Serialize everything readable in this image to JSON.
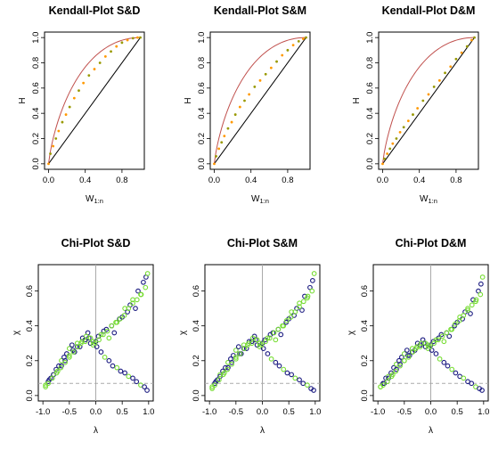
{
  "colors": {
    "orange_points": "#ff9900",
    "olive_points": "#999900",
    "navy_points": "#1a1a80",
    "green_points": "#77dd33",
    "red_curve": "#c0504d",
    "diagonal": "#000000",
    "grey_ref": "#aaaaaa"
  },
  "chart_data": [
    {
      "type": "scatter",
      "kind": "kendall",
      "title": "Kendall-Plot S&D",
      "xlabel": "W",
      "xlabel_sub": "1:n",
      "ylabel": "H",
      "xlim": [
        0,
        1
      ],
      "ylim": [
        0,
        1
      ],
      "xticks": [
        "0.0",
        "0.4",
        "0.8"
      ],
      "yticks": [
        "0.0",
        "0.2",
        "0.4",
        "0.6",
        "0.8",
        "1.0"
      ],
      "series": [
        {
          "x": [
            0,
            0.02,
            0.05,
            0.08,
            0.11,
            0.15,
            0.19,
            0.23,
            0.28,
            0.33,
            0.38,
            0.44,
            0.5,
            0.56,
            0.62,
            0.68,
            0.74,
            0.8,
            0.86,
            0.92,
            0.97,
            1.0
          ],
          "y": [
            0,
            0.08,
            0.14,
            0.2,
            0.26,
            0.33,
            0.39,
            0.45,
            0.52,
            0.58,
            0.64,
            0.7,
            0.75,
            0.8,
            0.85,
            0.89,
            0.93,
            0.96,
            0.98,
            0.995,
            1.0,
            1.0
          ]
        }
      ],
      "curves": [
        "upper-bound",
        "diagonal"
      ],
      "grid": false
    },
    {
      "type": "scatter",
      "kind": "kendall",
      "title": "Kendall-Plot S&M",
      "xlabel": "W",
      "xlabel_sub": "1:n",
      "ylabel": "H",
      "xlim": [
        0,
        1
      ],
      "ylim": [
        0,
        1
      ],
      "xticks": [
        "0.0",
        "0.4",
        "0.8"
      ],
      "yticks": [
        "0.0",
        "0.2",
        "0.4",
        "0.6",
        "0.8",
        "1.0"
      ],
      "series": [
        {
          "x": [
            0,
            0.02,
            0.05,
            0.08,
            0.11,
            0.15,
            0.19,
            0.23,
            0.28,
            0.33,
            0.38,
            0.44,
            0.5,
            0.56,
            0.62,
            0.68,
            0.74,
            0.8,
            0.86,
            0.92,
            0.97,
            1.0
          ],
          "y": [
            0,
            0.06,
            0.12,
            0.17,
            0.22,
            0.28,
            0.33,
            0.39,
            0.45,
            0.5,
            0.55,
            0.61,
            0.66,
            0.71,
            0.76,
            0.81,
            0.86,
            0.9,
            0.94,
            0.97,
            0.99,
            1.0
          ]
        }
      ],
      "curves": [
        "upper-bound",
        "diagonal"
      ],
      "grid": false
    },
    {
      "type": "scatter",
      "kind": "kendall",
      "title": "Kendall-Plot D&M",
      "xlabel": "W",
      "xlabel_sub": "1:n",
      "ylabel": "H",
      "xlim": [
        0,
        1
      ],
      "ylim": [
        0,
        1
      ],
      "xticks": [
        "0.0",
        "0.4",
        "0.8"
      ],
      "yticks": [
        "0.0",
        "0.2",
        "0.4",
        "0.6",
        "0.8",
        "1.0"
      ],
      "series": [
        {
          "x": [
            0,
            0.02,
            0.05,
            0.08,
            0.11,
            0.15,
            0.19,
            0.23,
            0.28,
            0.33,
            0.38,
            0.44,
            0.5,
            0.56,
            0.62,
            0.68,
            0.74,
            0.8,
            0.86,
            0.92,
            0.97,
            1.0
          ],
          "y": [
            0,
            0.04,
            0.08,
            0.12,
            0.16,
            0.2,
            0.25,
            0.29,
            0.34,
            0.39,
            0.44,
            0.5,
            0.55,
            0.61,
            0.66,
            0.72,
            0.77,
            0.83,
            0.88,
            0.93,
            0.98,
            1.0
          ]
        }
      ],
      "curves": [
        "upper-bound",
        "diagonal"
      ],
      "grid": false
    },
    {
      "type": "scatter",
      "kind": "chi",
      "title": "Chi-Plot S&D",
      "xlabel": "λ",
      "ylabel": "χ",
      "xlim": [
        -1,
        1
      ],
      "ylim": [
        0,
        0.72
      ],
      "xticks": [
        "-1.0",
        "-0.5",
        "0.0",
        "0.5",
        "1.0"
      ],
      "yticks": [
        "0.0",
        "0.2",
        "0.4",
        "0.6"
      ],
      "series": [
        {
          "x": [
            -0.95,
            -0.9,
            -0.85,
            -0.8,
            -0.75,
            -0.7,
            -0.65,
            -0.6,
            -0.55,
            -0.5,
            -0.45,
            -0.4,
            -0.35,
            -0.3,
            -0.25,
            -0.2,
            -0.15,
            -0.1,
            -0.05,
            0.0,
            0.05,
            0.1,
            0.15,
            0.2,
            0.25,
            0.3,
            0.35,
            0.4,
            0.45,
            0.5,
            0.55,
            0.6,
            0.65,
            0.7,
            0.75,
            0.8,
            0.85,
            0.9,
            0.95,
            0.98
          ],
          "y": [
            0.05,
            0.08,
            0.1,
            0.12,
            0.15,
            0.17,
            0.2,
            0.22,
            0.24,
            0.27,
            0.29,
            0.25,
            0.3,
            0.28,
            0.33,
            0.31,
            0.36,
            0.3,
            0.29,
            0.31,
            0.34,
            0.35,
            0.37,
            0.38,
            0.33,
            0.4,
            0.36,
            0.42,
            0.44,
            0.45,
            0.5,
            0.48,
            0.52,
            0.55,
            0.5,
            0.6,
            0.58,
            0.65,
            0.68,
            0.7
          ]
        },
        {
          "x": [
            -0.95,
            -0.88,
            -0.8,
            -0.72,
            -0.65,
            -0.58,
            -0.5,
            -0.43,
            -0.35,
            -0.28,
            -0.2,
            -0.13,
            -0.05,
            0.02,
            0.1,
            0.17,
            0.25,
            0.32,
            0.4,
            0.47,
            0.55,
            0.62,
            0.7,
            0.77,
            0.85,
            0.92,
            0.97
          ],
          "y": [
            0.06,
            0.09,
            0.12,
            0.14,
            0.17,
            0.2,
            0.23,
            0.26,
            0.28,
            0.3,
            0.32,
            0.33,
            0.31,
            0.28,
            0.25,
            0.22,
            0.2,
            0.17,
            0.16,
            0.14,
            0.13,
            0.11,
            0.1,
            0.08,
            0.06,
            0.05,
            0.03
          ]
        },
        {
          "x": [
            -0.9,
            -0.82,
            -0.74,
            -0.66,
            -0.58,
            -0.5,
            -0.42,
            -0.34,
            -0.26,
            -0.18,
            -0.1,
            -0.02,
            0.06,
            0.14,
            0.22,
            0.3,
            0.38,
            0.46,
            0.54,
            0.62,
            0.7,
            0.78,
            0.86,
            0.94
          ],
          "y": [
            0.07,
            0.1,
            0.13,
            0.16,
            0.19,
            0.22,
            0.25,
            0.28,
            0.31,
            0.34,
            0.33,
            0.3,
            0.32,
            0.35,
            0.37,
            0.4,
            0.42,
            0.44,
            0.46,
            0.5,
            0.53,
            0.55,
            0.58,
            0.62
          ]
        }
      ],
      "reference_lines": {
        "vertical_x": 0,
        "horizontal_y": 0.07
      },
      "grid": false
    },
    {
      "type": "scatter",
      "kind": "chi",
      "title": "Chi-Plot S&M",
      "xlabel": "λ",
      "ylabel": "χ",
      "xlim": [
        -1,
        1
      ],
      "ylim": [
        0,
        0.72
      ],
      "xticks": [
        "-1.0",
        "-0.5",
        "0.0",
        "0.5",
        "1.0"
      ],
      "yticks": [
        "0.0",
        "0.2",
        "0.4",
        "0.6"
      ],
      "series": [
        {
          "x": [
            -0.95,
            -0.9,
            -0.85,
            -0.8,
            -0.75,
            -0.7,
            -0.65,
            -0.6,
            -0.55,
            -0.5,
            -0.45,
            -0.4,
            -0.35,
            -0.3,
            -0.25,
            -0.2,
            -0.15,
            -0.1,
            -0.05,
            0.0,
            0.05,
            0.1,
            0.15,
            0.2,
            0.25,
            0.3,
            0.35,
            0.4,
            0.45,
            0.5,
            0.55,
            0.6,
            0.65,
            0.7,
            0.75,
            0.8,
            0.85,
            0.9,
            0.95,
            0.98
          ],
          "y": [
            0.04,
            0.07,
            0.09,
            0.12,
            0.14,
            0.16,
            0.19,
            0.21,
            0.23,
            0.26,
            0.28,
            0.24,
            0.29,
            0.27,
            0.31,
            0.3,
            0.34,
            0.29,
            0.28,
            0.3,
            0.32,
            0.33,
            0.35,
            0.36,
            0.32,
            0.38,
            0.35,
            0.4,
            0.42,
            0.44,
            0.48,
            0.46,
            0.5,
            0.53,
            0.49,
            0.57,
            0.56,
            0.62,
            0.66,
            0.7
          ]
        },
        {
          "x": [
            -0.95,
            -0.88,
            -0.8,
            -0.72,
            -0.65,
            -0.58,
            -0.5,
            -0.43,
            -0.35,
            -0.28,
            -0.2,
            -0.13,
            -0.05,
            0.02,
            0.1,
            0.17,
            0.25,
            0.32,
            0.4,
            0.47,
            0.55,
            0.62,
            0.7,
            0.77,
            0.85,
            0.92,
            0.97
          ],
          "y": [
            0.05,
            0.08,
            0.11,
            0.13,
            0.16,
            0.19,
            0.22,
            0.24,
            0.27,
            0.29,
            0.31,
            0.32,
            0.3,
            0.27,
            0.24,
            0.21,
            0.19,
            0.17,
            0.15,
            0.13,
            0.12,
            0.1,
            0.09,
            0.07,
            0.06,
            0.04,
            0.03
          ]
        },
        {
          "x": [
            -0.9,
            -0.82,
            -0.74,
            -0.66,
            -0.58,
            -0.5,
            -0.42,
            -0.34,
            -0.26,
            -0.18,
            -0.1,
            -0.02,
            0.06,
            0.14,
            0.22,
            0.3,
            0.38,
            0.46,
            0.54,
            0.62,
            0.7,
            0.78,
            0.86,
            0.94
          ],
          "y": [
            0.06,
            0.09,
            0.12,
            0.15,
            0.18,
            0.21,
            0.24,
            0.27,
            0.3,
            0.33,
            0.32,
            0.29,
            0.31,
            0.33,
            0.36,
            0.38,
            0.4,
            0.43,
            0.45,
            0.48,
            0.51,
            0.54,
            0.57,
            0.6
          ]
        }
      ],
      "reference_lines": {
        "vertical_x": 0,
        "horizontal_y": 0.07
      },
      "grid": false
    },
    {
      "type": "scatter",
      "kind": "chi",
      "title": "Chi-Plot D&M",
      "xlabel": "λ",
      "ylabel": "χ",
      "xlim": [
        -1,
        1
      ],
      "ylim": [
        0,
        0.72
      ],
      "xticks": [
        "-1.0",
        "-0.5",
        "0.0",
        "0.5",
        "1.0"
      ],
      "yticks": [
        "0.0",
        "0.2",
        "0.4",
        "0.6"
      ],
      "series": [
        {
          "x": [
            -0.95,
            -0.9,
            -0.85,
            -0.8,
            -0.75,
            -0.7,
            -0.65,
            -0.6,
            -0.55,
            -0.5,
            -0.45,
            -0.4,
            -0.35,
            -0.3,
            -0.25,
            -0.2,
            -0.15,
            -0.1,
            -0.05,
            0.0,
            0.05,
            0.1,
            0.15,
            0.2,
            0.25,
            0.3,
            0.35,
            0.4,
            0.45,
            0.5,
            0.55,
            0.6,
            0.65,
            0.7,
            0.75,
            0.8,
            0.85,
            0.9,
            0.95,
            0.98
          ],
          "y": [
            0.05,
            0.07,
            0.1,
            0.11,
            0.13,
            0.16,
            0.18,
            0.2,
            0.22,
            0.24,
            0.26,
            0.23,
            0.27,
            0.26,
            0.3,
            0.28,
            0.32,
            0.28,
            0.27,
            0.29,
            0.31,
            0.32,
            0.33,
            0.35,
            0.31,
            0.36,
            0.34,
            0.38,
            0.4,
            0.42,
            0.45,
            0.44,
            0.48,
            0.5,
            0.47,
            0.55,
            0.54,
            0.6,
            0.64,
            0.68
          ]
        },
        {
          "x": [
            -0.95,
            -0.88,
            -0.8,
            -0.72,
            -0.65,
            -0.58,
            -0.5,
            -0.43,
            -0.35,
            -0.28,
            -0.2,
            -0.13,
            -0.05,
            0.02,
            0.1,
            0.17,
            0.25,
            0.32,
            0.4,
            0.47,
            0.55,
            0.62,
            0.7,
            0.77,
            0.85,
            0.92,
            0.97
          ],
          "y": [
            0.05,
            0.07,
            0.1,
            0.12,
            0.15,
            0.18,
            0.2,
            0.23,
            0.25,
            0.27,
            0.29,
            0.3,
            0.29,
            0.26,
            0.24,
            0.21,
            0.19,
            0.17,
            0.15,
            0.13,
            0.11,
            0.1,
            0.08,
            0.07,
            0.05,
            0.04,
            0.03
          ]
        },
        {
          "x": [
            -0.9,
            -0.82,
            -0.74,
            -0.66,
            -0.58,
            -0.5,
            -0.42,
            -0.34,
            -0.26,
            -0.18,
            -0.1,
            -0.02,
            0.06,
            0.14,
            0.22,
            0.3,
            0.38,
            0.46,
            0.54,
            0.62,
            0.7,
            0.78,
            0.86,
            0.94
          ],
          "y": [
            0.06,
            0.08,
            0.11,
            0.14,
            0.17,
            0.2,
            0.22,
            0.25,
            0.28,
            0.3,
            0.3,
            0.28,
            0.3,
            0.32,
            0.34,
            0.36,
            0.38,
            0.41,
            0.43,
            0.46,
            0.49,
            0.52,
            0.55,
            0.58
          ]
        }
      ],
      "reference_lines": {
        "vertical_x": 0,
        "horizontal_y": 0.07
      },
      "grid": false
    }
  ]
}
